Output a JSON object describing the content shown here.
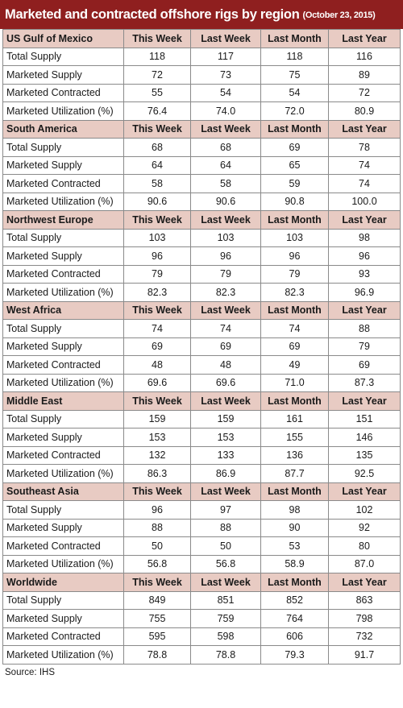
{
  "title": "Marketed and contracted offshore rigs by region",
  "date": "(October 23, 2015)",
  "columns": [
    "This Week",
    "Last Week",
    "Last Month",
    "Last Year"
  ],
  "source": "Source: IHS",
  "colors": {
    "title_bg": "#8f1f1f",
    "header_bg": "#e8cbc3"
  },
  "chart_data": {
    "type": "table",
    "title": "Marketed and contracted offshore rigs by region",
    "subtitle": "(October 23, 2015)",
    "columns": [
      "This Week",
      "Last Week",
      "Last Month",
      "Last Year"
    ],
    "regions": [
      {
        "name": "US Gulf of Mexico",
        "rows": [
          {
            "label": "Total Supply",
            "values": [
              "118",
              "117",
              "118",
              "116"
            ]
          },
          {
            "label": "Marketed Supply",
            "values": [
              "72",
              "73",
              "75",
              "89"
            ]
          },
          {
            "label": "Marketed Contracted",
            "values": [
              "55",
              "54",
              "54",
              "72"
            ]
          },
          {
            "label": "Marketed Utilization (%)",
            "values": [
              "76.4",
              "74.0",
              "72.0",
              "80.9"
            ]
          }
        ]
      },
      {
        "name": "South America",
        "rows": [
          {
            "label": "Total Supply",
            "values": [
              "68",
              "68",
              "69",
              "78"
            ]
          },
          {
            "label": "Marketed Supply",
            "values": [
              "64",
              "64",
              "65",
              "74"
            ]
          },
          {
            "label": "Marketed Contracted",
            "values": [
              "58",
              "58",
              "59",
              "74"
            ]
          },
          {
            "label": "Marketed Utilization (%)",
            "values": [
              "90.6",
              "90.6",
              "90.8",
              "100.0"
            ]
          }
        ]
      },
      {
        "name": "Northwest Europe",
        "rows": [
          {
            "label": "Total Supply",
            "values": [
              "103",
              "103",
              "103",
              "98"
            ]
          },
          {
            "label": "Marketed Supply",
            "values": [
              "96",
              "96",
              "96",
              "96"
            ]
          },
          {
            "label": "Marketed Contracted",
            "values": [
              "79",
              "79",
              "79",
              "93"
            ]
          },
          {
            "label": "Marketed Utilization (%)",
            "values": [
              "82.3",
              "82.3",
              "82.3",
              "96.9"
            ]
          }
        ]
      },
      {
        "name": "West Africa",
        "rows": [
          {
            "label": "Total Supply",
            "values": [
              "74",
              "74",
              "74",
              "88"
            ]
          },
          {
            "label": "Marketed Supply",
            "values": [
              "69",
              "69",
              "69",
              "79"
            ]
          },
          {
            "label": "Marketed Contracted",
            "values": [
              "48",
              "48",
              "49",
              "69"
            ]
          },
          {
            "label": "Marketed Utilization (%)",
            "values": [
              "69.6",
              "69.6",
              "71.0",
              "87.3"
            ]
          }
        ]
      },
      {
        "name": "Middle East",
        "rows": [
          {
            "label": "Total Supply",
            "values": [
              "159",
              "159",
              "161",
              "151"
            ]
          },
          {
            "label": "Marketed Supply",
            "values": [
              "153",
              "153",
              "155",
              "146"
            ]
          },
          {
            "label": "Marketed Contracted",
            "values": [
              "132",
              "133",
              "136",
              "135"
            ]
          },
          {
            "label": "Marketed Utilization (%)",
            "values": [
              "86.3",
              "86.9",
              "87.7",
              "92.5"
            ]
          }
        ]
      },
      {
        "name": "Southeast Asia",
        "rows": [
          {
            "label": "Total Supply",
            "values": [
              "96",
              "97",
              "98",
              "102"
            ]
          },
          {
            "label": "Marketed Supply",
            "values": [
              "88",
              "88",
              "90",
              "92"
            ]
          },
          {
            "label": "Marketed Contracted",
            "values": [
              "50",
              "50",
              "53",
              "80"
            ]
          },
          {
            "label": "Marketed Utilization (%)",
            "values": [
              "56.8",
              "56.8",
              "58.9",
              "87.0"
            ]
          }
        ]
      },
      {
        "name": "Worldwide",
        "rows": [
          {
            "label": "Total Supply",
            "values": [
              "849",
              "851",
              "852",
              "863"
            ]
          },
          {
            "label": "Marketed Supply",
            "values": [
              "755",
              "759",
              "764",
              "798"
            ]
          },
          {
            "label": "Marketed Contracted",
            "values": [
              "595",
              "598",
              "606",
              "732"
            ]
          },
          {
            "label": "Marketed Utilization (%)",
            "values": [
              "78.8",
              "78.8",
              "79.3",
              "91.7"
            ]
          }
        ]
      }
    ]
  }
}
